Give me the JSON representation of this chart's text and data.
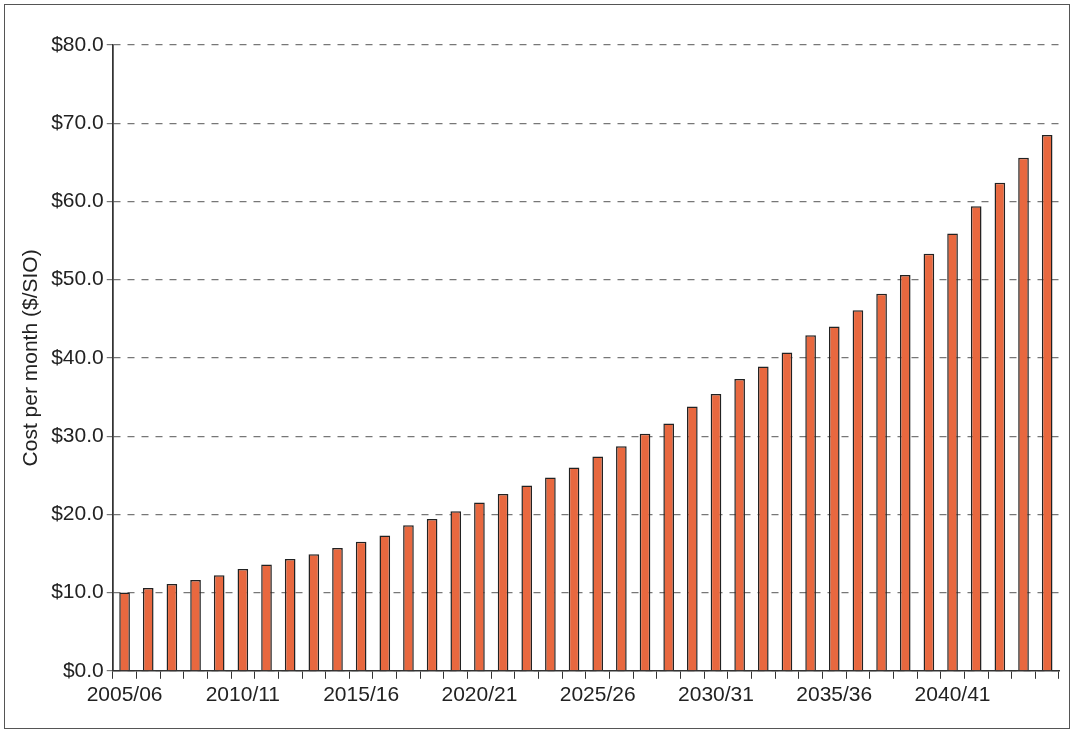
{
  "chart_data": {
    "type": "bar",
    "ylabel": "Cost per month ($/SIO)",
    "categories": [
      "2005/06",
      null,
      null,
      null,
      null,
      "2010/11",
      null,
      null,
      null,
      null,
      "2015/16",
      null,
      null,
      null,
      null,
      "2020/21",
      null,
      null,
      null,
      null,
      "2025/26",
      null,
      null,
      null,
      null,
      "2030/31",
      null,
      null,
      null,
      null,
      "2035/36",
      null,
      null,
      null,
      null,
      "2040/41",
      null,
      null,
      null,
      null
    ],
    "values": [
      10.0,
      10.6,
      11.1,
      11.6,
      12.2,
      13.0,
      13.6,
      14.3,
      14.9,
      15.7,
      16.5,
      17.3,
      18.6,
      19.4,
      20.4,
      21.5,
      22.6,
      23.7,
      24.7,
      26.0,
      27.4,
      28.7,
      30.3,
      31.6,
      33.8,
      35.4,
      37.3,
      38.9,
      40.7,
      42.9,
      44.0,
      46.1,
      48.2,
      50.6,
      53.3,
      55.9,
      59.4,
      62.4,
      65.6,
      68.5
    ],
    "color": "#e8683f",
    "ylim": [
      0,
      80
    ],
    "yticks": [
      {
        "value": 0,
        "label": "$0.0"
      },
      {
        "value": 10,
        "label": "$10.0"
      },
      {
        "value": 20,
        "label": "$20.0"
      },
      {
        "value": 30,
        "label": "$30.0"
      },
      {
        "value": 40,
        "label": "$40.0"
      },
      {
        "value": 50,
        "label": "$50.0"
      },
      {
        "value": 60,
        "label": "$60.0"
      },
      {
        "value": 70,
        "label": "$70.0"
      },
      {
        "value": 80,
        "label": "$80.0"
      }
    ],
    "grid": "y"
  }
}
